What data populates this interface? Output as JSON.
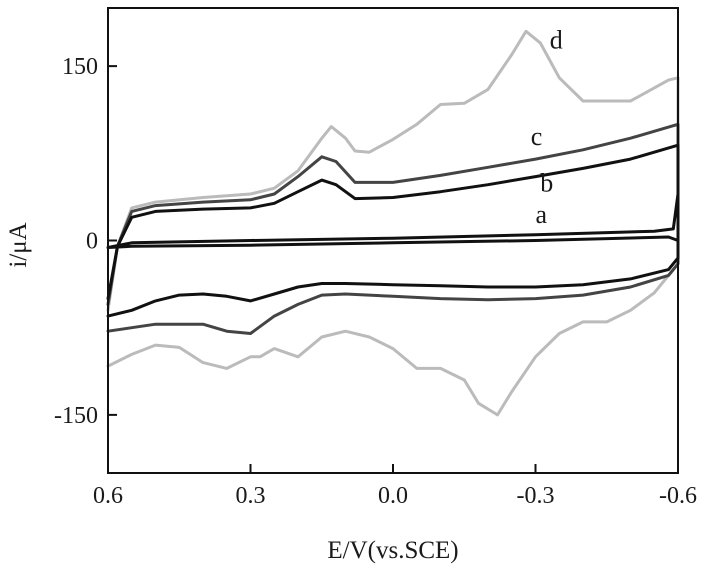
{
  "chart_data": {
    "type": "line",
    "xlabel": "E/V(vs.SCE)",
    "ylabel": "i/μA",
    "xlim": [
      0.6,
      -0.6
    ],
    "ylim": [
      -200,
      200
    ],
    "x_reversed": true,
    "grid": false,
    "legend": "none; curves labeled a, b, c, d beside their traces",
    "xticks": [
      {
        "value": 0.6,
        "label": "0.6"
      },
      {
        "value": 0.3,
        "label": "0.3"
      },
      {
        "value": 0.0,
        "label": "0.0"
      },
      {
        "value": -0.3,
        "label": "-0.3"
      },
      {
        "value": -0.6,
        "label": "-0.6"
      }
    ],
    "yticks": [
      {
        "value": 150,
        "label": "150"
      },
      {
        "value": 0,
        "label": "0"
      },
      {
        "value": -150,
        "label": "-150"
      }
    ],
    "series": [
      {
        "name": "a",
        "color": "#111111",
        "label_at": [
          -0.3,
          15
        ],
        "points": [
          [
            0.6,
            -6
          ],
          [
            0.55,
            -2
          ],
          [
            0.3,
            0
          ],
          [
            0.0,
            2
          ],
          [
            -0.3,
            5
          ],
          [
            -0.55,
            8
          ],
          [
            -0.59,
            10
          ],
          [
            -0.6,
            40
          ],
          [
            -0.6,
            0
          ],
          [
            -0.58,
            3
          ],
          [
            -0.3,
            0
          ],
          [
            0.0,
            -2
          ],
          [
            0.3,
            -4
          ],
          [
            0.55,
            -5
          ],
          [
            0.6,
            -6
          ]
        ]
      },
      {
        "name": "b",
        "color": "#111111",
        "label_at": [
          -0.31,
          42
        ],
        "points": [
          [
            0.6,
            -50
          ],
          [
            0.58,
            -5
          ],
          [
            0.55,
            20
          ],
          [
            0.5,
            25
          ],
          [
            0.4,
            27
          ],
          [
            0.3,
            28
          ],
          [
            0.25,
            32
          ],
          [
            0.2,
            42
          ],
          [
            0.15,
            52
          ],
          [
            0.12,
            48
          ],
          [
            0.08,
            36
          ],
          [
            0.0,
            37
          ],
          [
            -0.1,
            42
          ],
          [
            -0.2,
            48
          ],
          [
            -0.3,
            55
          ],
          [
            -0.4,
            62
          ],
          [
            -0.5,
            70
          ],
          [
            -0.6,
            82
          ],
          [
            -0.6,
            -15
          ],
          [
            -0.58,
            -25
          ],
          [
            -0.5,
            -33
          ],
          [
            -0.4,
            -38
          ],
          [
            -0.3,
            -40
          ],
          [
            -0.2,
            -40
          ],
          [
            -0.1,
            -39
          ],
          [
            0.0,
            -38
          ],
          [
            0.1,
            -37
          ],
          [
            0.15,
            -37
          ],
          [
            0.2,
            -40
          ],
          [
            0.25,
            -46
          ],
          [
            0.3,
            -52
          ],
          [
            0.35,
            -48
          ],
          [
            0.4,
            -46
          ],
          [
            0.45,
            -47
          ],
          [
            0.5,
            -52
          ],
          [
            0.55,
            -60
          ],
          [
            0.6,
            -65
          ]
        ]
      },
      {
        "name": "c",
        "color": "#444444",
        "label_at": [
          -0.29,
          82
        ],
        "points": [
          [
            0.6,
            -55
          ],
          [
            0.58,
            -5
          ],
          [
            0.55,
            25
          ],
          [
            0.5,
            30
          ],
          [
            0.4,
            33
          ],
          [
            0.3,
            35
          ],
          [
            0.25,
            40
          ],
          [
            0.2,
            55
          ],
          [
            0.15,
            72
          ],
          [
            0.12,
            68
          ],
          [
            0.08,
            50
          ],
          [
            0.0,
            50
          ],
          [
            -0.1,
            56
          ],
          [
            -0.2,
            63
          ],
          [
            -0.3,
            70
          ],
          [
            -0.4,
            78
          ],
          [
            -0.5,
            88
          ],
          [
            -0.6,
            100
          ],
          [
            -0.6,
            -20
          ],
          [
            -0.58,
            -30
          ],
          [
            -0.5,
            -40
          ],
          [
            -0.4,
            -47
          ],
          [
            -0.3,
            -50
          ],
          [
            -0.2,
            -51
          ],
          [
            -0.1,
            -50
          ],
          [
            0.0,
            -48
          ],
          [
            0.1,
            -46
          ],
          [
            0.15,
            -47
          ],
          [
            0.2,
            -55
          ],
          [
            0.25,
            -65
          ],
          [
            0.3,
            -80
          ],
          [
            0.35,
            -78
          ],
          [
            0.4,
            -72
          ],
          [
            0.5,
            -72
          ],
          [
            0.55,
            -75
          ],
          [
            0.6,
            -78
          ]
        ]
      },
      {
        "name": "d",
        "color": "#bbbbbb",
        "label_at": [
          -0.33,
          165
        ],
        "points": [
          [
            0.6,
            -60
          ],
          [
            0.58,
            -5
          ],
          [
            0.55,
            28
          ],
          [
            0.5,
            33
          ],
          [
            0.4,
            37
          ],
          [
            0.3,
            40
          ],
          [
            0.25,
            45
          ],
          [
            0.2,
            60
          ],
          [
            0.15,
            88
          ],
          [
            0.13,
            98
          ],
          [
            0.1,
            88
          ],
          [
            0.08,
            77
          ],
          [
            0.05,
            76
          ],
          [
            0.0,
            87
          ],
          [
            -0.05,
            100
          ],
          [
            -0.1,
            117
          ],
          [
            -0.15,
            118
          ],
          [
            -0.2,
            130
          ],
          [
            -0.25,
            160
          ],
          [
            -0.28,
            180
          ],
          [
            -0.31,
            170
          ],
          [
            -0.35,
            140
          ],
          [
            -0.4,
            120
          ],
          [
            -0.5,
            120
          ],
          [
            -0.58,
            138
          ],
          [
            -0.6,
            140
          ],
          [
            -0.6,
            -20
          ],
          [
            -0.55,
            -45
          ],
          [
            -0.5,
            -60
          ],
          [
            -0.45,
            -70
          ],
          [
            -0.4,
            -70
          ],
          [
            -0.35,
            -80
          ],
          [
            -0.3,
            -100
          ],
          [
            -0.25,
            -130
          ],
          [
            -0.22,
            -150
          ],
          [
            -0.18,
            -140
          ],
          [
            -0.15,
            -120
          ],
          [
            -0.1,
            -110
          ],
          [
            -0.05,
            -110
          ],
          [
            0.0,
            -93
          ],
          [
            0.05,
            -83
          ],
          [
            0.1,
            -78
          ],
          [
            0.15,
            -83
          ],
          [
            0.2,
            -100
          ],
          [
            0.25,
            -93
          ],
          [
            0.28,
            -100
          ],
          [
            0.3,
            -100
          ],
          [
            0.35,
            -110
          ],
          [
            0.4,
            -105
          ],
          [
            0.45,
            -92
          ],
          [
            0.5,
            -90
          ],
          [
            0.55,
            -98
          ],
          [
            0.6,
            -108
          ]
        ]
      }
    ]
  }
}
